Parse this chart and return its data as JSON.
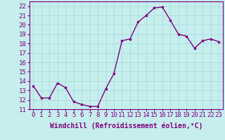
{
  "x": [
    0,
    1,
    2,
    3,
    4,
    5,
    6,
    7,
    8,
    9,
    10,
    11,
    12,
    13,
    14,
    15,
    16,
    17,
    18,
    19,
    20,
    21,
    22,
    23
  ],
  "y": [
    13.5,
    12.2,
    12.2,
    13.8,
    13.3,
    11.8,
    11.5,
    11.3,
    11.3,
    13.2,
    14.8,
    18.3,
    18.5,
    20.3,
    21.0,
    21.8,
    21.9,
    20.5,
    19.0,
    18.8,
    17.5,
    18.3,
    18.5,
    18.2
  ],
  "line_color": "#800080",
  "marker": "s",
  "marker_size": 2.0,
  "bg_color": "#c5eeed",
  "grid_color": "#aadddd",
  "xlabel": "Windchill (Refroidissement éolien,°C)",
  "ylabel": "",
  "xlim": [
    -0.5,
    23.5
  ],
  "ylim": [
    11,
    22.5
  ],
  "yticks": [
    11,
    12,
    13,
    14,
    15,
    16,
    17,
    18,
    19,
    20,
    21,
    22
  ],
  "xticks": [
    0,
    1,
    2,
    3,
    4,
    5,
    6,
    7,
    8,
    9,
    10,
    11,
    12,
    13,
    14,
    15,
    16,
    17,
    18,
    19,
    20,
    21,
    22,
    23
  ],
  "tick_label_fontsize": 6.5,
  "xlabel_fontsize": 7.0,
  "line_width": 1.0
}
